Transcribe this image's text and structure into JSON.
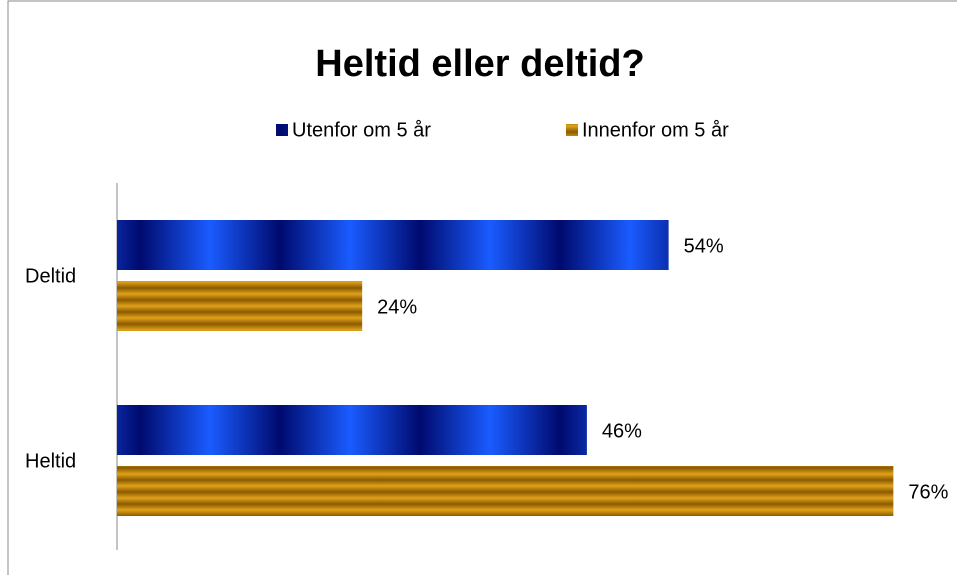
{
  "chart_data": {
    "type": "barh",
    "title": "Heltid eller deltid?",
    "categories": [
      "Deltid",
      "Heltid"
    ],
    "series": [
      {
        "name": "Utenfor om 5 år",
        "color": "#1a5cff",
        "values": [
          54,
          46
        ],
        "value_labels": [
          "54%",
          "46%"
        ]
      },
      {
        "name": "Innenfor om 5 år",
        "color": "#e0a21a",
        "values": [
          24,
          76
        ],
        "value_labels": [
          "24%",
          "76%"
        ]
      }
    ]
  }
}
